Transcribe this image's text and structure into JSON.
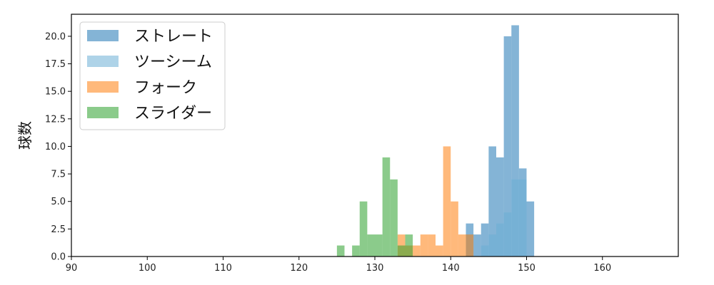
{
  "chart_data": {
    "type": "bar",
    "title": "",
    "xlabel": "",
    "ylabel": "球数",
    "xlim": [
      90,
      170
    ],
    "ylim": [
      0,
      22
    ],
    "grid": false,
    "legend_position": "top-left",
    "x_ticks": [
      90,
      100,
      110,
      120,
      130,
      140,
      150,
      160
    ],
    "x_tick_labels": [
      "90",
      "100",
      "110",
      "120",
      "130",
      "140",
      "150",
      "160"
    ],
    "y_ticks": [
      0,
      2.5,
      5,
      7.5,
      10,
      12.5,
      15,
      17.5,
      20
    ],
    "y_tick_labels": [
      "0.0",
      "2.5",
      "5.0",
      "7.5",
      "10.0",
      "12.5",
      "15.0",
      "17.5",
      "20.0"
    ],
    "bin_width": 1,
    "series": [
      {
        "name": "ストレート",
        "color": "#1f77b4",
        "bins": [
          [
            142,
            3
          ],
          [
            143,
            2
          ],
          [
            144,
            3
          ],
          [
            145,
            10
          ],
          [
            146,
            9
          ],
          [
            147,
            20
          ],
          [
            148,
            21
          ],
          [
            149,
            8
          ],
          [
            150,
            5
          ]
        ]
      },
      {
        "name": "ツーシーム",
        "color": "#6baed6",
        "bins": [
          [
            142,
            2
          ],
          [
            143,
            0
          ],
          [
            144,
            1
          ],
          [
            145,
            2
          ],
          [
            146,
            3
          ],
          [
            147,
            4
          ],
          [
            148,
            7
          ],
          [
            149,
            7
          ]
        ]
      },
      {
        "name": "フォーク",
        "color": "#ff7f0e",
        "bins": [
          [
            133,
            2
          ],
          [
            134,
            1
          ],
          [
            135,
            1
          ],
          [
            136,
            2
          ],
          [
            137,
            2
          ],
          [
            138,
            1
          ],
          [
            139,
            10
          ],
          [
            140,
            5
          ],
          [
            141,
            2
          ],
          [
            142,
            2
          ]
        ]
      },
      {
        "name": "スライダー",
        "color": "#2ca02c",
        "bins": [
          [
            125,
            1
          ],
          [
            127,
            1
          ],
          [
            128,
            5
          ],
          [
            129,
            2
          ],
          [
            130,
            2
          ],
          [
            131,
            9
          ],
          [
            132,
            7
          ],
          [
            133,
            1
          ],
          [
            134,
            2
          ]
        ]
      }
    ]
  }
}
